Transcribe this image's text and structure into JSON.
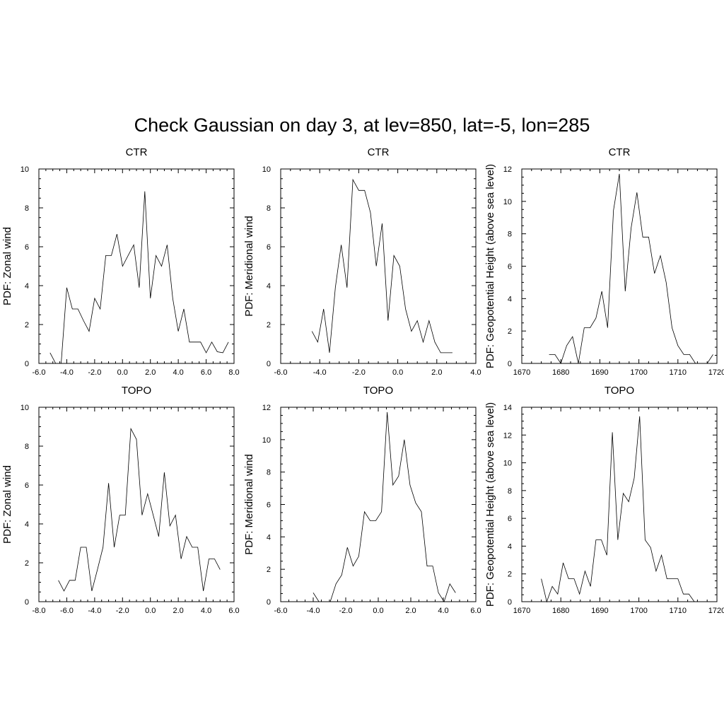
{
  "figure": {
    "title": "Check Gaussian on day 3, at lev=850, lat=-5, lon=285"
  },
  "chart_data": [
    {
      "type": "line",
      "title": "CTR",
      "xlabel": "",
      "ylabel": "PDF: Zonal wind",
      "xlim": [
        -6,
        8
      ],
      "ylim": [
        0,
        10
      ],
      "xticks": [
        -6,
        -4,
        -2,
        0,
        2,
        4,
        6,
        8
      ],
      "xtick_labels": [
        "-6.0",
        "-4.0",
        "-2.0",
        "0.0",
        "2.0",
        "4.0",
        "6.0",
        "8.0"
      ],
      "yticks": [
        0,
        2,
        4,
        6,
        8,
        10
      ],
      "ytick_labels": [
        "0",
        "2",
        "4",
        "6",
        "8",
        "10"
      ],
      "x": [
        -5.2,
        -4.8,
        -4.4,
        -4.0,
        -3.6,
        -3.2,
        -2.8,
        -2.4,
        -2.0,
        -1.6,
        -1.2,
        -0.8,
        -0.4,
        0.0,
        0.4,
        0.8,
        1.2,
        1.6,
        2.0,
        2.4,
        2.8,
        3.2,
        3.6,
        4.0,
        4.4,
        4.8,
        5.2,
        5.6,
        6.0,
        6.4,
        6.8,
        7.2,
        7.6
      ],
      "y": [
        0.55,
        0.0,
        0.0,
        3.9,
        2.8,
        2.8,
        2.2,
        1.65,
        3.35,
        2.8,
        5.55,
        5.55,
        6.65,
        5.0,
        5.55,
        6.1,
        3.9,
        8.85,
        3.35,
        5.55,
        5.0,
        6.1,
        3.35,
        1.65,
        2.8,
        1.1,
        1.1,
        1.1,
        0.55,
        1.1,
        0.6,
        0.55,
        1.1
      ]
    },
    {
      "type": "line",
      "title": "CTR",
      "xlabel": "",
      "ylabel": "PDF: Meridional wind",
      "xlim": [
        -6,
        4
      ],
      "ylim": [
        0,
        10
      ],
      "xticks": [
        -6,
        -4,
        -2,
        0,
        2,
        4
      ],
      "xtick_labels": [
        "-6.0",
        "-4.0",
        "-2.0",
        "0.0",
        "2.0",
        "4.0"
      ],
      "yticks": [
        0,
        2,
        4,
        6,
        8,
        10
      ],
      "ytick_labels": [
        "0",
        "2",
        "4",
        "6",
        "8",
        "10"
      ],
      "x": [
        -4.4,
        -4.1,
        -3.8,
        -3.5,
        -3.2,
        -2.9,
        -2.6,
        -2.3,
        -2.0,
        -1.7,
        -1.4,
        -1.1,
        -0.8,
        -0.5,
        -0.2,
        0.1,
        0.4,
        0.7,
        1.0,
        1.3,
        1.6,
        1.9,
        2.2,
        2.5,
        2.8
      ],
      "y": [
        1.65,
        1.1,
        2.8,
        0.55,
        3.9,
        6.1,
        3.9,
        9.45,
        8.9,
        8.9,
        7.75,
        5.0,
        7.2,
        2.2,
        5.55,
        5.0,
        2.8,
        1.65,
        2.2,
        1.1,
        2.2,
        1.1,
        0.55,
        0.55,
        0.55
      ]
    },
    {
      "type": "line",
      "title": "CTR",
      "xlabel": "",
      "ylabel": "PDF: Geopotential Height (above sea level)",
      "xlim": [
        1670,
        1720
      ],
      "ylim": [
        0,
        12
      ],
      "xticks": [
        1670,
        1680,
        1690,
        1700,
        1710,
        1720
      ],
      "xtick_labels": [
        "1670",
        "1680",
        "1690",
        "1700",
        "1710",
        "1720"
      ],
      "yticks": [
        0,
        2,
        4,
        6,
        8,
        10,
        12
      ],
      "ytick_labels": [
        "0",
        "2",
        "4",
        "6",
        "8",
        "10",
        "12"
      ],
      "x": [
        1677,
        1678.5,
        1680,
        1681.5,
        1683,
        1684.5,
        1686,
        1687.5,
        1689,
        1690.5,
        1692,
        1693.5,
        1695,
        1696.5,
        1698,
        1699.5,
        1701,
        1702.5,
        1704,
        1705.5,
        1707,
        1708.5,
        1710,
        1711.5,
        1713,
        1714.5,
        1716,
        1717.5,
        1719
      ],
      "y": [
        0.55,
        0.55,
        0.0,
        1.1,
        1.65,
        0.0,
        2.2,
        2.2,
        2.8,
        4.45,
        2.2,
        9.45,
        11.7,
        4.45,
        8.35,
        10.55,
        7.8,
        7.8,
        5.55,
        6.65,
        5.0,
        2.2,
        1.1,
        0.55,
        0.55,
        0.0,
        0.0,
        0.0,
        0.55
      ]
    },
    {
      "type": "line",
      "title": "TOPO",
      "xlabel": "",
      "ylabel": "PDF: Zonal wind",
      "xlim": [
        -8,
        6
      ],
      "ylim": [
        0,
        10
      ],
      "xticks": [
        -8,
        -6,
        -4,
        -2,
        0,
        2,
        4,
        6
      ],
      "xtick_labels": [
        "-8.0",
        "-6.0",
        "-4.0",
        "-2.0",
        "0.0",
        "2.0",
        "4.0",
        "6.0"
      ],
      "yticks": [
        0,
        2,
        4,
        6,
        8,
        10
      ],
      "ytick_labels": [
        "0",
        "2",
        "4",
        "6",
        "8",
        "10"
      ],
      "x": [
        -6.6,
        -6.2,
        -5.8,
        -5.4,
        -5.0,
        -4.6,
        -4.2,
        -3.8,
        -3.4,
        -3.0,
        -2.6,
        -2.2,
        -1.8,
        -1.4,
        -1.0,
        -0.6,
        -0.2,
        0.2,
        0.6,
        1.0,
        1.4,
        1.8,
        2.2,
        2.6,
        3.0,
        3.4,
        3.8,
        4.2,
        4.6,
        5.0
      ],
      "y": [
        1.1,
        0.55,
        1.1,
        1.1,
        2.8,
        2.8,
        0.55,
        1.65,
        2.8,
        6.1,
        2.8,
        4.45,
        4.45,
        8.9,
        8.35,
        4.45,
        5.55,
        4.45,
        3.35,
        6.65,
        3.9,
        4.45,
        2.2,
        3.35,
        2.8,
        2.8,
        0.55,
        2.2,
        2.2,
        1.65
      ]
    },
    {
      "type": "line",
      "title": "TOPO",
      "xlabel": "",
      "ylabel": "PDF: Meridional wind",
      "xlim": [
        -6,
        6
      ],
      "ylim": [
        0,
        12
      ],
      "xticks": [
        -6,
        -4,
        -2,
        0,
        2,
        4,
        6
      ],
      "xtick_labels": [
        "-6.0",
        "-4.0",
        "-2.0",
        "0.0",
        "2.0",
        "4.0",
        "6.0"
      ],
      "yticks": [
        0,
        2,
        4,
        6,
        8,
        10,
        12
      ],
      "ytick_labels": [
        "0",
        "2",
        "4",
        "6",
        "8",
        "10",
        "12"
      ],
      "x": [
        -4.0,
        -3.65,
        -3.3,
        -2.95,
        -2.6,
        -2.25,
        -1.9,
        -1.55,
        -1.2,
        -0.85,
        -0.5,
        -0.15,
        0.2,
        0.55,
        0.9,
        1.25,
        1.6,
        1.95,
        2.3,
        2.65,
        3.0,
        3.35,
        3.7,
        4.05,
        4.4,
        4.75
      ],
      "y": [
        0.55,
        0.0,
        0.0,
        0.0,
        1.1,
        1.65,
        3.35,
        2.2,
        2.8,
        5.55,
        5.0,
        5.0,
        5.55,
        11.7,
        7.2,
        7.75,
        10.0,
        7.2,
        6.1,
        5.55,
        2.2,
        2.2,
        0.55,
        0.0,
        1.1,
        0.55
      ]
    },
    {
      "type": "line",
      "title": "TOPO",
      "xlabel": "",
      "ylabel": "PDF: Geopotential Height (above sea level)",
      "xlim": [
        1670,
        1720
      ],
      "ylim": [
        0,
        14
      ],
      "xticks": [
        1670,
        1680,
        1690,
        1700,
        1710,
        1720
      ],
      "xtick_labels": [
        "1670",
        "1680",
        "1690",
        "1700",
        "1710",
        "1720"
      ],
      "yticks": [
        0,
        2,
        4,
        6,
        8,
        10,
        12,
        14
      ],
      "ytick_labels": [
        "0",
        "2",
        "4",
        "6",
        "8",
        "10",
        "12",
        "14"
      ],
      "x": [
        1675.0,
        1676.4,
        1677.8,
        1679.2,
        1680.6,
        1682.0,
        1683.4,
        1684.8,
        1686.2,
        1687.6,
        1689.0,
        1690.4,
        1691.8,
        1693.2,
        1694.6,
        1696.0,
        1697.4,
        1698.8,
        1700.2,
        1701.6,
        1703.0,
        1704.4,
        1705.8,
        1707.2,
        1708.6,
        1710.0,
        1711.4,
        1712.8,
        1714.2
      ],
      "y": [
        1.65,
        0.0,
        1.1,
        0.55,
        2.8,
        1.65,
        1.65,
        0.55,
        2.2,
        1.1,
        4.45,
        4.45,
        3.35,
        12.2,
        4.45,
        7.8,
        7.2,
        8.9,
        13.35,
        4.45,
        3.9,
        2.2,
        3.35,
        1.65,
        1.65,
        1.65,
        0.55,
        0.55,
        0.0
      ]
    }
  ]
}
